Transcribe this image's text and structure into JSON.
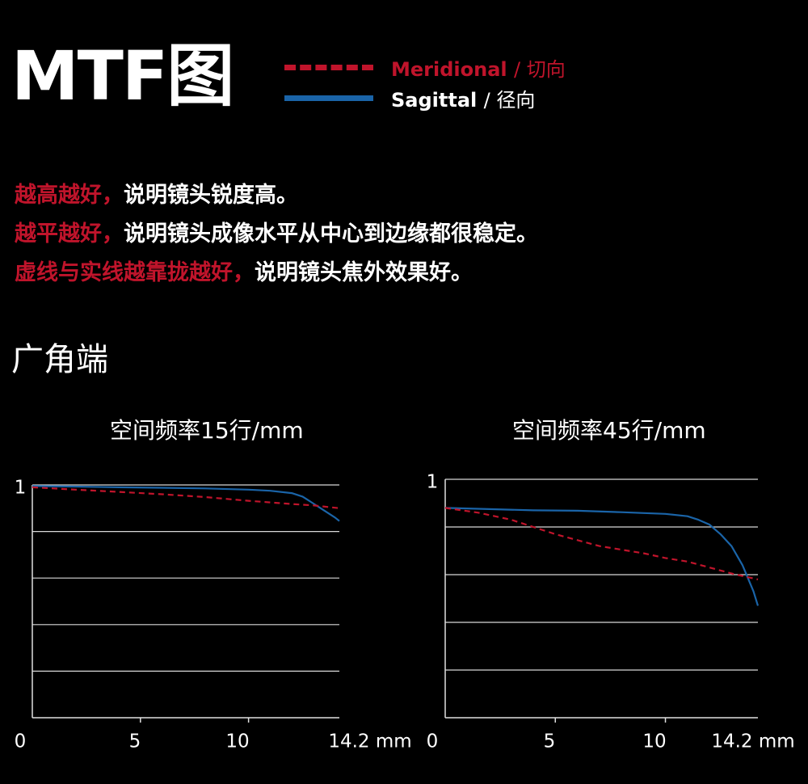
{
  "header": {
    "title": "MTF图",
    "legend": [
      {
        "label": "Meridional",
        "label_cn": "/ 切向",
        "style": "dashed",
        "color": "#c0142b"
      },
      {
        "label": "Sagittal",
        "label_cn": "/ 径向",
        "style": "solid",
        "color": "#1a64a8"
      }
    ]
  },
  "notes": [
    {
      "highlight": "越高越好，",
      "text": "说明镜头锐度高。"
    },
    {
      "highlight": "越平越好，",
      "text": "说明镜头成像水平从中心到边缘都很稳定。"
    },
    {
      "highlight": "虚线与实线越靠拢越好，",
      "text": "说明镜头焦外效果好。"
    }
  ],
  "section_title": "广角端",
  "chart_data": [
    {
      "type": "line",
      "title": "空间频率15行/mm",
      "xlim": [
        0,
        14.2
      ],
      "ylim": [
        0,
        1
      ],
      "x_ticks": [
        "0",
        "5",
        "10",
        "14.2 mm"
      ],
      "y_ticks": [
        "1"
      ],
      "grid": true,
      "series": [
        {
          "name": "Sagittal",
          "style": "solid",
          "color": "#1a64a8",
          "x": [
            0,
            2,
            4,
            6,
            8,
            10,
            11,
            12,
            12.5,
            13,
            13.5,
            14,
            14.2
          ],
          "y": [
            0.995,
            0.993,
            0.99,
            0.988,
            0.985,
            0.98,
            0.975,
            0.965,
            0.95,
            0.92,
            0.89,
            0.86,
            0.845
          ]
        },
        {
          "name": "Meridional",
          "style": "dashed",
          "color": "#c0142b",
          "x": [
            0,
            2,
            4,
            6,
            8,
            10,
            12,
            13,
            14.2
          ],
          "y": [
            0.99,
            0.98,
            0.97,
            0.96,
            0.948,
            0.932,
            0.918,
            0.912,
            0.9
          ]
        }
      ]
    },
    {
      "type": "line",
      "title": "空间频率45行/mm",
      "xlim": [
        0,
        14.2
      ],
      "ylim": [
        0,
        1
      ],
      "x_ticks": [
        "0",
        "5",
        "10",
        "14.2 mm"
      ],
      "y_ticks": [
        "1"
      ],
      "grid": true,
      "series": [
        {
          "name": "Sagittal",
          "style": "solid",
          "color": "#1a64a8",
          "x": [
            0,
            2,
            4,
            6,
            8,
            10,
            11,
            11.5,
            12,
            12.5,
            13,
            13.5,
            14,
            14.2
          ],
          "y": [
            0.88,
            0.875,
            0.87,
            0.868,
            0.862,
            0.855,
            0.845,
            0.83,
            0.81,
            0.77,
            0.72,
            0.64,
            0.53,
            0.47
          ]
        },
        {
          "name": "Meridional",
          "style": "dashed",
          "color": "#c0142b",
          "x": [
            0,
            1.5,
            3,
            5,
            7,
            9,
            10,
            11,
            12,
            13,
            14.2
          ],
          "y": [
            0.88,
            0.86,
            0.83,
            0.77,
            0.72,
            0.69,
            0.67,
            0.655,
            0.63,
            0.605,
            0.58
          ]
        }
      ]
    }
  ]
}
